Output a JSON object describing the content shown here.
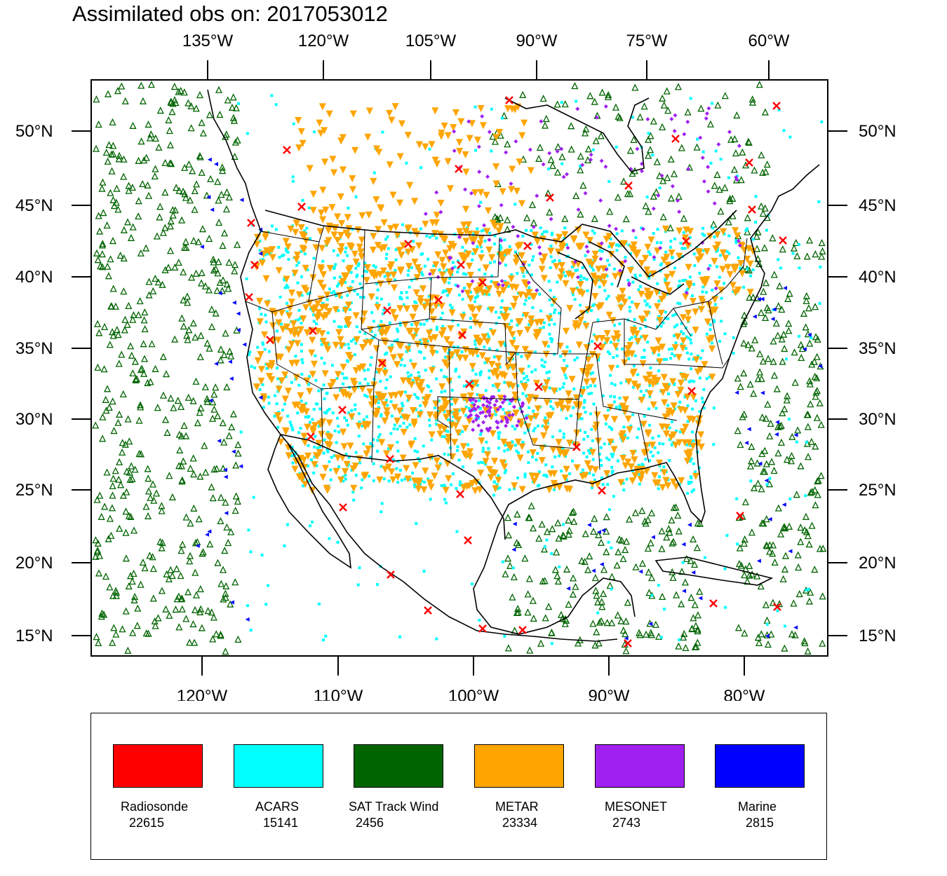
{
  "title": "Assimilated obs on: 2017053012",
  "map": {
    "top_longitude_labels": [
      "135°W",
      "120°W",
      "105°W",
      "90°W",
      "75°W",
      "60°W"
    ],
    "bottom_longitude_labels": [
      "120°W",
      "110°W",
      "100°W",
      "90°W",
      "80°W"
    ],
    "latitude_labels": [
      "50°N",
      "45°N",
      "40°N",
      "35°N",
      "30°N",
      "25°N",
      "20°N",
      "15°N"
    ],
    "background": "#ffffff",
    "boundary_color": "#000000"
  },
  "legend": [
    {
      "name": "Radiosonde",
      "count": "22615",
      "color": "#ff0000",
      "symbol": "x-marker"
    },
    {
      "name": "ACARS",
      "count": "15141",
      "color": "#00ffff",
      "symbol": "square-marker"
    },
    {
      "name": "SAT Track Wind",
      "count": "2456",
      "color": "#006400",
      "symbol": "triangle-marker"
    },
    {
      "name": "METAR",
      "count": "23334",
      "color": "#ffa500",
      "symbol": "inverted-triangle-marker"
    },
    {
      "name": "MESONET",
      "count": "2743",
      "color": "#a020f0",
      "symbol": "diamond-marker"
    },
    {
      "name": "Marine",
      "count": "2815",
      "color": "#0000ff",
      "symbol": "left-triangle-marker"
    }
  ]
}
